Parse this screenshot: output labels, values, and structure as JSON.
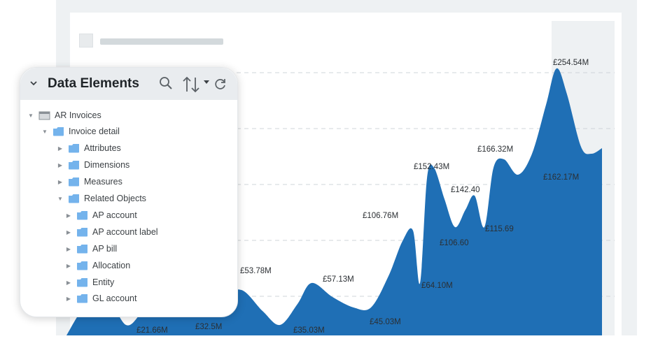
{
  "panel": {
    "title": "Data Elements",
    "tree": [
      {
        "label": "AR Invoices",
        "expanded": true,
        "icon": "table-icon"
      },
      {
        "label": "Invoice detail",
        "expanded": true,
        "icon": "folder-icon"
      },
      {
        "label": "Attributes",
        "expanded": false,
        "icon": "folder-icon"
      },
      {
        "label": "Dimensions",
        "expanded": false,
        "icon": "folder-icon"
      },
      {
        "label": "Measures",
        "expanded": false,
        "icon": "folder-icon"
      },
      {
        "label": "Related Objects",
        "expanded": true,
        "icon": "folder-icon"
      },
      {
        "label": "AP account",
        "expanded": false,
        "icon": "folder-icon"
      },
      {
        "label": "AP account label",
        "expanded": false,
        "icon": "folder-icon"
      },
      {
        "label": "AP bill",
        "expanded": false,
        "icon": "folder-icon"
      },
      {
        "label": "Allocation",
        "expanded": false,
        "icon": "folder-icon"
      },
      {
        "label": "Entity",
        "expanded": false,
        "icon": "folder-icon"
      },
      {
        "label": "GL account",
        "expanded": false,
        "icon": "folder-icon"
      }
    ],
    "tools": [
      "search-icon",
      "sort-icon",
      "dropdown-icon",
      "refresh-icon"
    ]
  },
  "colors": {
    "area": "#1f6fb5",
    "folder": "#74b3ec",
    "panel_header": "#e9ecef",
    "frame": "#eef1f3"
  },
  "chart_data": {
    "type": "area",
    "labels": [
      "£21.66M",
      "£32.5M",
      "£53.78M",
      "£35.03M",
      "£57.13M",
      "£45.03M",
      "£106.76M",
      "£64.10M",
      "£152.43M",
      "£106.60",
      "£142.40",
      "£115.69",
      "£166.32M",
      "£254.54M",
      "£162.17M"
    ]
  }
}
